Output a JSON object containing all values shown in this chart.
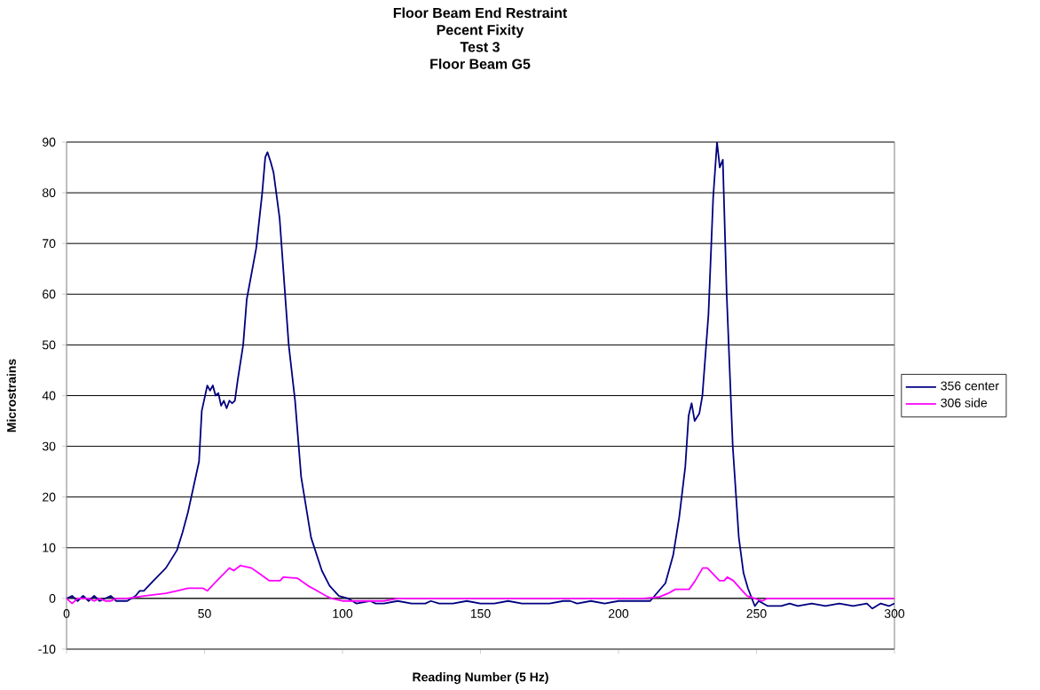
{
  "chart_data": {
    "type": "line",
    "title": "Floor Beam End Restraint\nPecent Fixity\nTest 3\nFloor Beam G5",
    "xlabel": "Reading Number (5 Hz)",
    "ylabel": "Microstrains",
    "xlim": [
      0,
      300
    ],
    "ylim": [
      -10,
      90
    ],
    "xticks": [
      0,
      50,
      100,
      150,
      200,
      250,
      300
    ],
    "yticks": [
      -10,
      0,
      10,
      20,
      30,
      40,
      50,
      60,
      70,
      80,
      90
    ],
    "grid": "y",
    "legend": "right",
    "marker": "none",
    "line_style": "solid",
    "series": [
      {
        "name": "356 center",
        "color": "#000080",
        "x": [
          0,
          2,
          4,
          6,
          8,
          10,
          12,
          16,
          18,
          22,
          25,
          26.5,
          28,
          31.5,
          36,
          40,
          42,
          44,
          46,
          48,
          49,
          51,
          52,
          53,
          54,
          55,
          56,
          57,
          58,
          59,
          60,
          61,
          62,
          64,
          65.3,
          68.7,
          70.9,
          72,
          72.8,
          74,
          75,
          77.2,
          80.5,
          82.8,
          85,
          88.6,
          92.5,
          95.3,
          98.7,
          102,
          105,
          110,
          112,
          115,
          120,
          125,
          130,
          132,
          135,
          140,
          145,
          150,
          155,
          160,
          165,
          170,
          175,
          180,
          182.5,
          185,
          190,
          195,
          200,
          205,
          209.3,
          211.5,
          217,
          219.8,
          222,
          224.2,
          225.4,
          226.5,
          227.6,
          229.3,
          230.4,
          232.6,
          234.3,
          235.7,
          236.7,
          237.8,
          239.2,
          241.4,
          243.6,
          245.3,
          246.9,
          249.4,
          250.8,
          254.1,
          259,
          262,
          265,
          270,
          275,
          280,
          285,
          290,
          292,
          295,
          298,
          300
        ],
        "values": [
          0,
          0.5,
          -0.5,
          0.5,
          -0.5,
          0.5,
          -0.5,
          0.5,
          -0.5,
          -0.5,
          0.5,
          1.5,
          1.5,
          3.5,
          6,
          9.5,
          13,
          17,
          22,
          27,
          37,
          42,
          41,
          42,
          40,
          40.5,
          38,
          39,
          37.5,
          39,
          38.5,
          39,
          43,
          50,
          59,
          69,
          80,
          87,
          88,
          86,
          84,
          75,
          50,
          39,
          24,
          12,
          5.5,
          2.5,
          0.5,
          0,
          -1,
          -0.5,
          -1,
          -1,
          -0.5,
          -1,
          -1,
          -0.5,
          -1,
          -1,
          -0.5,
          -1,
          -1,
          -0.5,
          -1,
          -1,
          -1,
          -0.5,
          -0.5,
          -1,
          -0.5,
          -1,
          -0.5,
          -0.5,
          -0.5,
          -0.5,
          3,
          8.5,
          16,
          26,
          36,
          38.5,
          35,
          36.5,
          40,
          56,
          79,
          90,
          85,
          86.5,
          60,
          30,
          12,
          5,
          2,
          -1.5,
          -0.5,
          -1.5,
          -1.5,
          -1,
          -1.5,
          -1,
          -1.5,
          -1,
          -1.5,
          -1,
          -2,
          -1,
          -1.5,
          -1
        ]
      },
      {
        "name": "306 side",
        "color": "#ff00ff",
        "x": [
          0,
          2,
          4,
          8,
          10,
          12,
          14,
          16,
          18,
          22,
          28,
          36,
          40,
          44,
          49.5,
          51,
          54.5,
          59,
          60.6,
          63,
          67,
          69.6,
          73.5,
          77.4,
          78.5,
          83.6,
          87.5,
          90.8,
          94,
          96,
          100,
          105,
          110,
          115,
          120,
          150,
          200,
          209.3,
          214.8,
          218,
          220.6,
          225.6,
          227.8,
          230.5,
          232.2,
          236.6,
          238.3,
          239.4,
          241.6,
          244.4,
          246.6,
          249.4,
          252.1,
          253.8,
          300
        ],
        "values": [
          0,
          -1,
          0,
          0,
          -0.5,
          0,
          -0.5,
          -0.5,
          0,
          0,
          0.5,
          1,
          1.5,
          2,
          2,
          1.5,
          3.5,
          6,
          5.5,
          6.5,
          6,
          5,
          3.5,
          3.5,
          4.2,
          4,
          2.5,
          1.5,
          0.5,
          0,
          -0.5,
          -0.5,
          -0.5,
          -0.5,
          0,
          0,
          0,
          0,
          0.3,
          1,
          1.8,
          1.8,
          3.5,
          6,
          6,
          3.5,
          3.5,
          4.2,
          3.5,
          1.8,
          0.5,
          0,
          -0.5,
          0,
          0
        ]
      }
    ]
  }
}
